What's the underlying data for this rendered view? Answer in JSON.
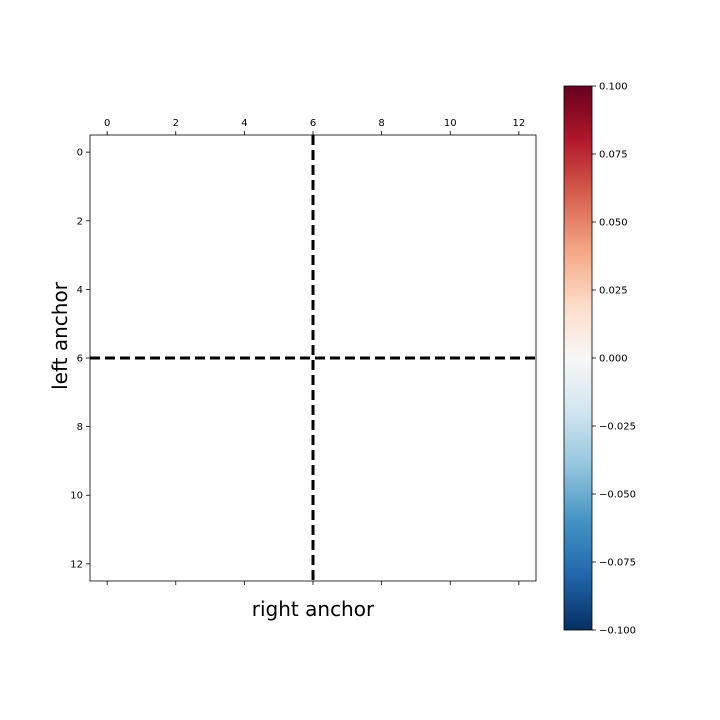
{
  "chart_data": {
    "type": "heatmap",
    "title": "",
    "xlabel": "right anchor",
    "ylabel": "left anchor",
    "xlim": [
      -0.5,
      12.5
    ],
    "ylim": [
      12.5,
      -0.5
    ],
    "x_ticks": [
      0,
      2,
      4,
      6,
      8,
      10,
      12
    ],
    "y_ticks": [
      0,
      2,
      4,
      6,
      8,
      10,
      12
    ],
    "x_tick_position": "top",
    "values": [],
    "value_note": "all cells 0.0 (blank)",
    "divider_lines": {
      "x": 6,
      "y": 6,
      "style": "dashed",
      "color": "#000000"
    },
    "colorbar": {
      "colormap": "RdBu_r",
      "vmin": -0.1,
      "vmax": 0.1,
      "ticks": [
        0.1,
        0.075,
        0.05,
        0.025,
        0.0,
        -0.025,
        -0.05,
        -0.075,
        -0.1
      ],
      "tick_labels": [
        "0.100",
        "0.075",
        "0.050",
        "0.025",
        "0.000",
        "−0.025",
        "−0.050",
        "−0.075",
        "−0.100"
      ],
      "colors": [
        "#67001f",
        "#b2182b",
        "#d6604d",
        "#f4a582",
        "#fddbc7",
        "#f7f7f7",
        "#d1e5f0",
        "#92c5de",
        "#4393c3",
        "#2166ac",
        "#053061"
      ]
    }
  }
}
